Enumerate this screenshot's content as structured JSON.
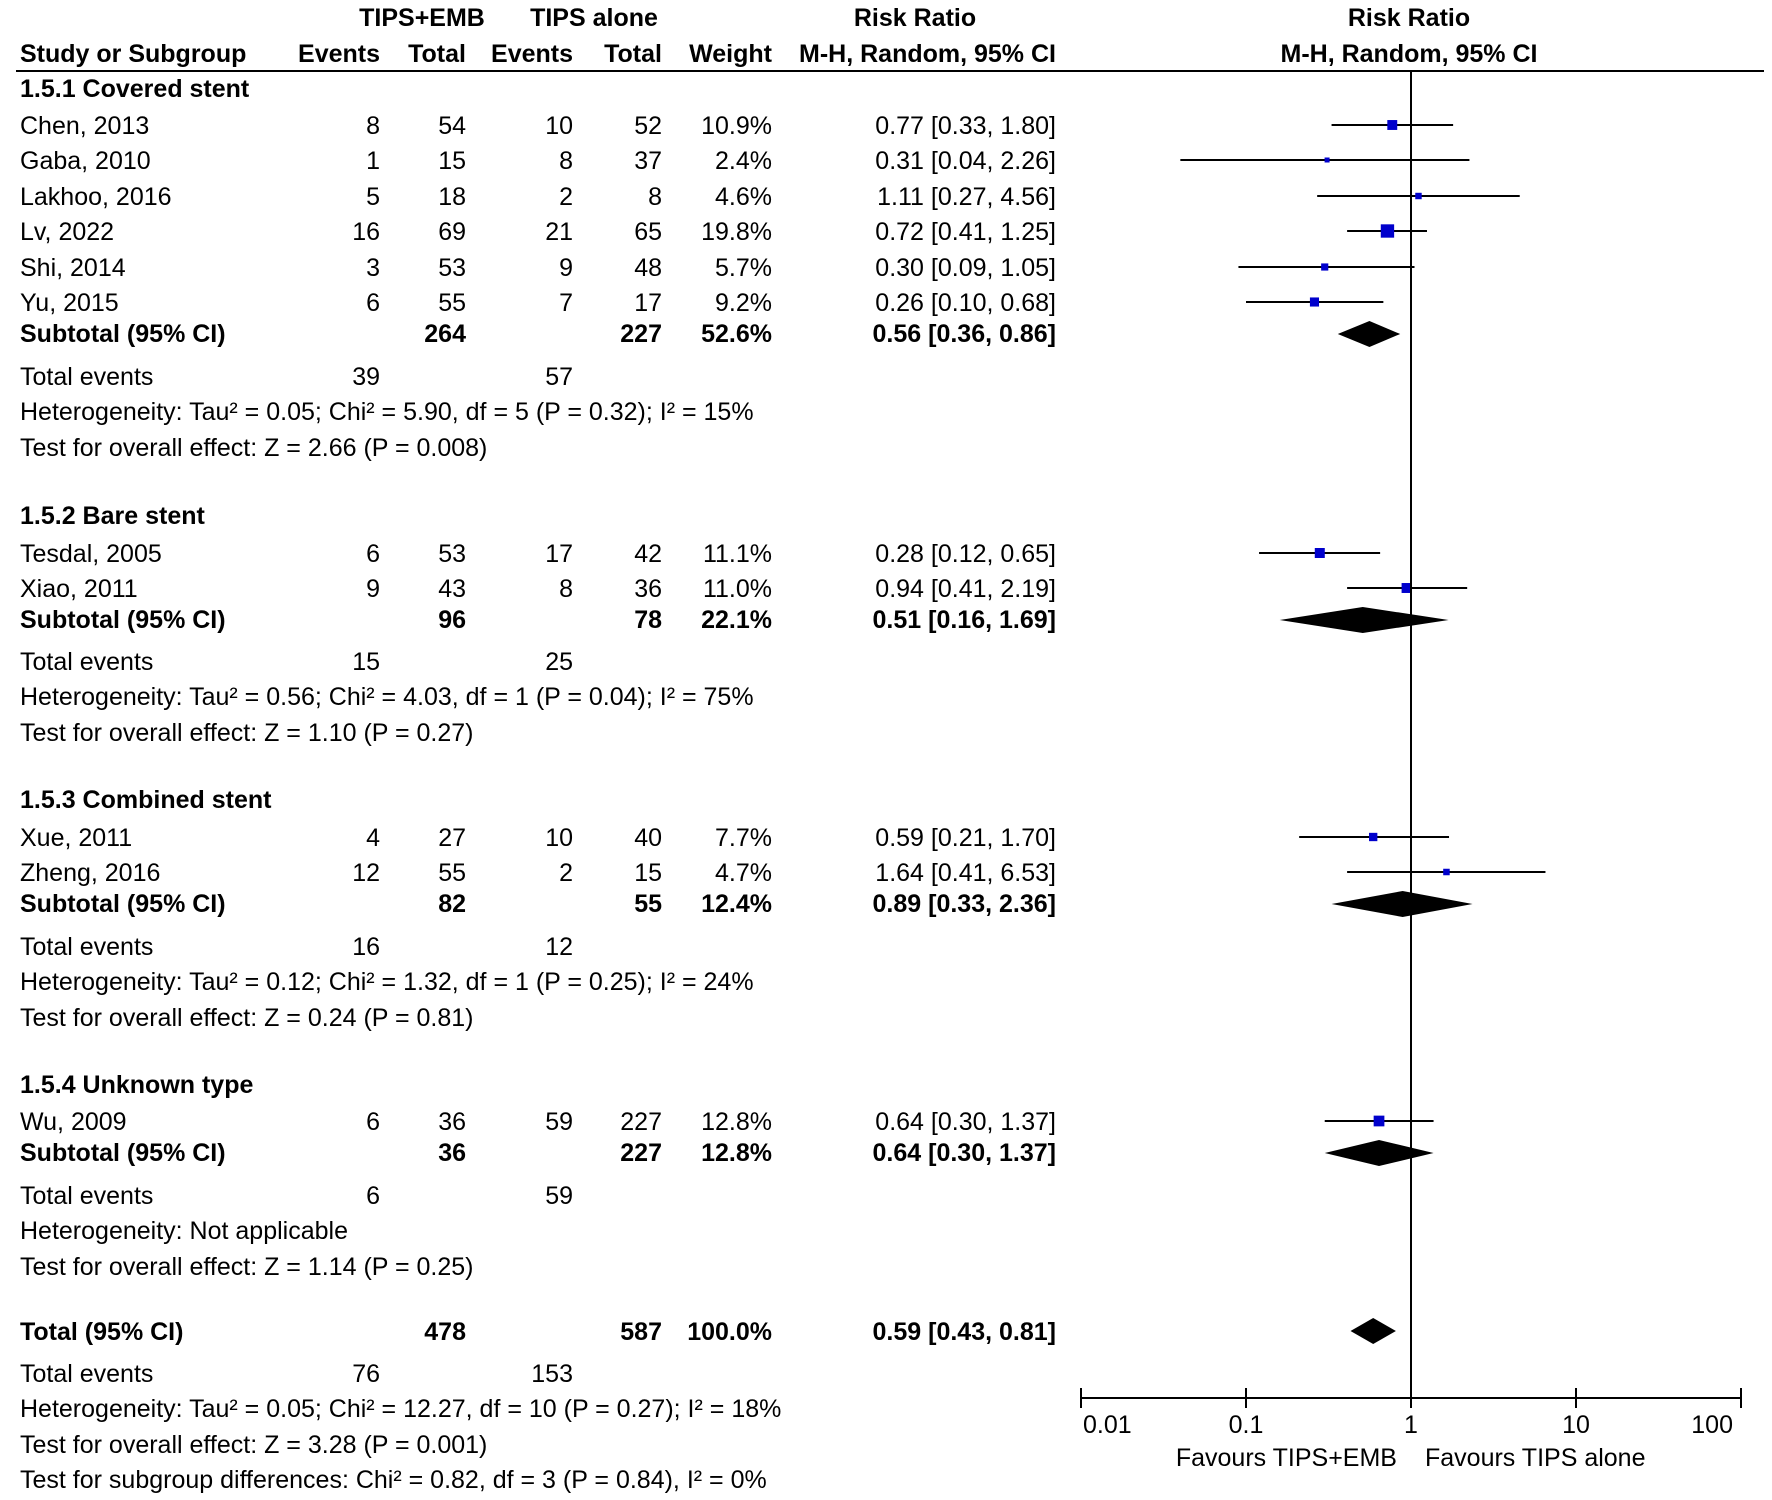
{
  "headers": {
    "group1": "TIPS+EMB",
    "group2": "TIPS alone",
    "rr_top": "Risk Ratio",
    "rr_sub": "M-H, Random, 95% CI",
    "plot_top": "Risk Ratio",
    "plot_sub": "M-H, Random, 95% CI",
    "study": "Study or Subgroup",
    "events": "Events",
    "total": "Total",
    "weight": "Weight"
  },
  "subgroups": [
    {
      "title": "1.5.1 Covered stent",
      "studies": [
        {
          "name": "Chen, 2013",
          "e1": "8",
          "t1": "54",
          "e2": "10",
          "t2": "52",
          "weight": "10.9%",
          "ci": "0.77 [0.33, 1.80]",
          "rr": 0.77,
          "lo": 0.33,
          "hi": 1.8,
          "w": 10.9
        },
        {
          "name": "Gaba, 2010",
          "e1": "1",
          "t1": "15",
          "e2": "8",
          "t2": "37",
          "weight": "2.4%",
          "ci": "0.31 [0.04, 2.26]",
          "rr": 0.31,
          "lo": 0.04,
          "hi": 2.26,
          "w": 2.4
        },
        {
          "name": "Lakhoo, 2016",
          "e1": "5",
          "t1": "18",
          "e2": "2",
          "t2": "8",
          "weight": "4.6%",
          "ci": "1.11 [0.27, 4.56]",
          "rr": 1.11,
          "lo": 0.27,
          "hi": 4.56,
          "w": 4.6
        },
        {
          "name": "Lv, 2022",
          "e1": "16",
          "t1": "69",
          "e2": "21",
          "t2": "65",
          "weight": "19.8%",
          "ci": "0.72 [0.41, 1.25]",
          "rr": 0.72,
          "lo": 0.41,
          "hi": 1.25,
          "w": 19.8
        },
        {
          "name": "Shi, 2014",
          "e1": "3",
          "t1": "53",
          "e2": "9",
          "t2": "48",
          "weight": "5.7%",
          "ci": "0.30 [0.09, 1.05]",
          "rr": 0.3,
          "lo": 0.09,
          "hi": 1.05,
          "w": 5.7
        },
        {
          "name": "Yu, 2015",
          "e1": "6",
          "t1": "55",
          "e2": "7",
          "t2": "17",
          "weight": "9.2%",
          "ci": "0.26 [0.10, 0.68]",
          "rr": 0.26,
          "lo": 0.1,
          "hi": 0.68,
          "w": 9.2
        }
      ],
      "subtotal": {
        "label": "Subtotal (95% CI)",
        "t1": "264",
        "t2": "227",
        "weight": "52.6%",
        "ci": "0.56 [0.36, 0.86]",
        "rr": 0.56,
        "lo": 0.36,
        "hi": 0.86
      },
      "events": {
        "label": "Total events",
        "e1": "39",
        "e2": "57"
      },
      "heterogeneity": "Heterogeneity: Tau² = 0.05; Chi² = 5.90, df = 5 (P = 0.32); I² = 15%",
      "overall": "Test for overall effect: Z = 2.66 (P = 0.008)"
    },
    {
      "title": "1.5.2 Bare stent",
      "studies": [
        {
          "name": "Tesdal, 2005",
          "e1": "6",
          "t1": "53",
          "e2": "17",
          "t2": "42",
          "weight": "11.1%",
          "ci": "0.28 [0.12, 0.65]",
          "rr": 0.28,
          "lo": 0.12,
          "hi": 0.65,
          "w": 11.1
        },
        {
          "name": "Xiao, 2011",
          "e1": "9",
          "t1": "43",
          "e2": "8",
          "t2": "36",
          "weight": "11.0%",
          "ci": "0.94 [0.41, 2.19]",
          "rr": 0.94,
          "lo": 0.41,
          "hi": 2.19,
          "w": 11.0
        }
      ],
      "subtotal": {
        "label": "Subtotal (95% CI)",
        "t1": "96",
        "t2": "78",
        "weight": "22.1%",
        "ci": "0.51 [0.16, 1.69]",
        "rr": 0.51,
        "lo": 0.16,
        "hi": 1.69
      },
      "events": {
        "label": "Total events",
        "e1": "15",
        "e2": "25"
      },
      "heterogeneity": "Heterogeneity: Tau² = 0.56; Chi² = 4.03, df = 1 (P = 0.04); I² = 75%",
      "overall": "Test for overall effect: Z = 1.10 (P = 0.27)"
    },
    {
      "title": "1.5.3 Combined stent",
      "studies": [
        {
          "name": "Xue, 2011",
          "e1": "4",
          "t1": "27",
          "e2": "10",
          "t2": "40",
          "weight": "7.7%",
          "ci": "0.59 [0.21, 1.70]",
          "rr": 0.59,
          "lo": 0.21,
          "hi": 1.7,
          "w": 7.7
        },
        {
          "name": "Zheng, 2016",
          "e1": "12",
          "t1": "55",
          "e2": "2",
          "t2": "15",
          "weight": "4.7%",
          "ci": "1.64 [0.41, 6.53]",
          "rr": 1.64,
          "lo": 0.41,
          "hi": 6.53,
          "w": 4.7
        }
      ],
      "subtotal": {
        "label": "Subtotal (95% CI)",
        "t1": "82",
        "t2": "55",
        "weight": "12.4%",
        "ci": "0.89 [0.33, 2.36]",
        "rr": 0.89,
        "lo": 0.33,
        "hi": 2.36
      },
      "events": {
        "label": "Total events",
        "e1": "16",
        "e2": "12"
      },
      "heterogeneity": "Heterogeneity: Tau² = 0.12; Chi² = 1.32, df = 1 (P = 0.25); I² = 24%",
      "overall": "Test for overall effect: Z = 0.24 (P = 0.81)"
    },
    {
      "title": "1.5.4 Unknown type",
      "studies": [
        {
          "name": "Wu, 2009",
          "e1": "6",
          "t1": "36",
          "e2": "59",
          "t2": "227",
          "weight": "12.8%",
          "ci": "0.64 [0.30, 1.37]",
          "rr": 0.64,
          "lo": 0.3,
          "hi": 1.37,
          "w": 12.8
        }
      ],
      "subtotal": {
        "label": "Subtotal (95% CI)",
        "t1": "36",
        "t2": "227",
        "weight": "12.8%",
        "ci": "0.64 [0.30, 1.37]",
        "rr": 0.64,
        "lo": 0.3,
        "hi": 1.37
      },
      "events": {
        "label": "Total events",
        "e1": "6",
        "e2": "59"
      },
      "heterogeneity": "Heterogeneity: Not applicable",
      "overall": "Test for overall effect: Z = 1.14 (P = 0.25)"
    }
  ],
  "total": {
    "label": "Total (95% CI)",
    "t1": "478",
    "t2": "587",
    "weight": "100.0%",
    "ci": "0.59 [0.43, 0.81]",
    "rr": 0.59,
    "lo": 0.43,
    "hi": 0.81,
    "events": {
      "label": "Total events",
      "e1": "76",
      "e2": "153"
    },
    "heterogeneity": "Heterogeneity: Tau² = 0.05; Chi² = 12.27, df = 10 (P = 0.27); I² = 18%",
    "overall": "Test for overall effect: Z = 3.28 (P = 0.001)",
    "subgroup_diff": "Test for subgroup differences: Chi² = 0.82, df = 3 (P = 0.84), I² = 0%"
  },
  "axis": {
    "ticks": [
      0.01,
      0.1,
      1,
      10,
      100
    ],
    "tick_labels": [
      "0.01",
      "0.1",
      "1",
      "10",
      "100"
    ],
    "favours_left": "Favours TIPS+EMB",
    "favours_right": "Favours TIPS alone"
  },
  "colors": {
    "square": "#0000cc",
    "line": "#000000",
    "diamond": "#000000"
  },
  "chart_data": {
    "type": "scatter",
    "scale": "log",
    "xlim": [
      0.01,
      100
    ],
    "series": [
      {
        "name": "Study risk ratios",
        "points": [
          {
            "label": "Chen, 2013",
            "rr": 0.77,
            "lo": 0.33,
            "hi": 1.8
          },
          {
            "label": "Gaba, 2010",
            "rr": 0.31,
            "lo": 0.04,
            "hi": 2.26
          },
          {
            "label": "Lakhoo, 2016",
            "rr": 1.11,
            "lo": 0.27,
            "hi": 4.56
          },
          {
            "label": "Lv, 2022",
            "rr": 0.72,
            "lo": 0.41,
            "hi": 1.25
          },
          {
            "label": "Shi, 2014",
            "rr": 0.3,
            "lo": 0.09,
            "hi": 1.05
          },
          {
            "label": "Yu, 2015",
            "rr": 0.26,
            "lo": 0.1,
            "hi": 0.68
          },
          {
            "label": "Tesdal, 2005",
            "rr": 0.28,
            "lo": 0.12,
            "hi": 0.65
          },
          {
            "label": "Xiao, 2011",
            "rr": 0.94,
            "lo": 0.41,
            "hi": 2.19
          },
          {
            "label": "Xue, 2011",
            "rr": 0.59,
            "lo": 0.21,
            "hi": 1.7
          },
          {
            "label": "Zheng, 2016",
            "rr": 1.64,
            "lo": 0.41,
            "hi": 6.53
          },
          {
            "label": "Wu, 2009",
            "rr": 0.64,
            "lo": 0.3,
            "hi": 1.37
          }
        ]
      }
    ]
  }
}
